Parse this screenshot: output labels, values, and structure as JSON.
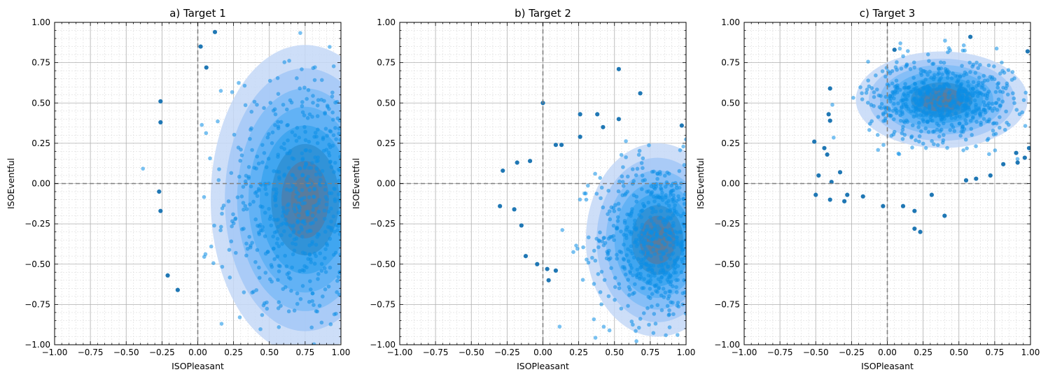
{
  "chart_data": [
    {
      "type": "scatter",
      "title": "a) Target 1",
      "xlabel": "ISOPleasant",
      "ylabel": "ISOEventful",
      "xlim": [
        -1,
        1
      ],
      "ylim": [
        -1,
        1
      ],
      "xticks": [
        "−1.00",
        "−0.75",
        "−0.50",
        "−0.25",
        "0.00",
        "0.25",
        "0.50",
        "0.75",
        "1.00"
      ],
      "yticks": [
        "−1.00",
        "−0.75",
        "−0.50",
        "−0.25",
        "0.00",
        "0.25",
        "0.50",
        "0.75",
        "1.00"
      ],
      "grid": true,
      "density_center": [
        0.75,
        -0.1
      ],
      "density_spread": [
        0.33,
        0.48
      ],
      "outliers": [
        {
          "x": -0.26,
          "y": 0.51
        },
        {
          "x": -0.26,
          "y": 0.38
        },
        {
          "x": -0.27,
          "y": -0.05
        },
        {
          "x": -0.26,
          "y": -0.17
        },
        {
          "x": -0.21,
          "y": -0.57
        },
        {
          "x": -0.14,
          "y": -0.66
        },
        {
          "x": 0.12,
          "y": 0.94
        },
        {
          "x": 0.02,
          "y": 0.85
        },
        {
          "x": 0.06,
          "y": 0.72
        }
      ]
    },
    {
      "type": "scatter",
      "title": "b) Target 2",
      "xlabel": "ISOPleasant",
      "ylabel": "ISOEventful",
      "xlim": [
        -1,
        1
      ],
      "ylim": [
        -1,
        1
      ],
      "xticks": [
        "−1.00",
        "−0.75",
        "−0.50",
        "−0.25",
        "0.00",
        "0.25",
        "0.50",
        "0.75",
        "1.00"
      ],
      "yticks": [
        "−1.00",
        "−0.75",
        "−0.50",
        "−0.25",
        "0.00",
        "0.25",
        "0.50",
        "0.75",
        "1.00"
      ],
      "grid": true,
      "density_center": [
        0.8,
        -0.35
      ],
      "density_spread": [
        0.25,
        0.3
      ],
      "outliers": [
        {
          "x": -0.3,
          "y": -0.14
        },
        {
          "x": -0.28,
          "y": 0.08
        },
        {
          "x": -0.2,
          "y": -0.16
        },
        {
          "x": -0.18,
          "y": 0.13
        },
        {
          "x": -0.15,
          "y": -0.26
        },
        {
          "x": -0.12,
          "y": -0.45
        },
        {
          "x": -0.09,
          "y": 0.14
        },
        {
          "x": -0.04,
          "y": -0.5
        },
        {
          "x": 0.0,
          "y": 0.5
        },
        {
          "x": 0.03,
          "y": -0.53
        },
        {
          "x": 0.04,
          "y": -0.6
        },
        {
          "x": 0.09,
          "y": 0.24
        },
        {
          "x": 0.13,
          "y": 0.24
        },
        {
          "x": 0.26,
          "y": 0.43
        },
        {
          "x": 0.26,
          "y": 0.29
        },
        {
          "x": 0.38,
          "y": 0.43
        },
        {
          "x": 0.42,
          "y": 0.35
        },
        {
          "x": 0.53,
          "y": 0.71
        },
        {
          "x": 0.53,
          "y": 0.4
        },
        {
          "x": 0.68,
          "y": 0.56
        },
        {
          "x": 0.97,
          "y": 0.36
        },
        {
          "x": 0.09,
          "y": -0.54
        }
      ]
    },
    {
      "type": "scatter",
      "title": "c) Target 3",
      "xlabel": "ISOPleasant",
      "ylabel": "ISOEventful",
      "xlim": [
        -1,
        1
      ],
      "ylim": [
        -1,
        1
      ],
      "xticks": [
        "−1.00",
        "−0.75",
        "−0.50",
        "−0.25",
        "0.00",
        "0.25",
        "0.50",
        "0.75",
        "1.00"
      ],
      "yticks": [
        "−1.00",
        "−0.75",
        "−0.50",
        "−0.25",
        "0.00",
        "0.25",
        "0.50",
        "0.75",
        "1.00"
      ],
      "grid": true,
      "density_center": [
        0.38,
        0.52
      ],
      "density_spread": [
        0.3,
        0.15
      ],
      "outliers": [
        {
          "x": -0.51,
          "y": 0.26
        },
        {
          "x": -0.5,
          "y": -0.07
        },
        {
          "x": -0.48,
          "y": 0.05
        },
        {
          "x": -0.44,
          "y": 0.22
        },
        {
          "x": -0.42,
          "y": 0.18
        },
        {
          "x": -0.4,
          "y": 0.59
        },
        {
          "x": -0.41,
          "y": 0.43
        },
        {
          "x": -0.4,
          "y": 0.39
        },
        {
          "x": -0.39,
          "y": 0.01
        },
        {
          "x": -0.4,
          "y": -0.1
        },
        {
          "x": -0.33,
          "y": 0.07
        },
        {
          "x": -0.3,
          "y": -0.11
        },
        {
          "x": -0.28,
          "y": -0.07
        },
        {
          "x": -0.17,
          "y": -0.08
        },
        {
          "x": -0.03,
          "y": -0.14
        },
        {
          "x": 0.05,
          "y": 0.83
        },
        {
          "x": 0.11,
          "y": -0.14
        },
        {
          "x": 0.19,
          "y": -0.17
        },
        {
          "x": 0.19,
          "y": -0.28
        },
        {
          "x": 0.23,
          "y": -0.3
        },
        {
          "x": 0.31,
          "y": -0.07
        },
        {
          "x": 0.4,
          "y": -0.2
        },
        {
          "x": 0.58,
          "y": 0.91
        },
        {
          "x": 0.55,
          "y": 0.02
        },
        {
          "x": 0.62,
          "y": 0.03
        },
        {
          "x": 0.72,
          "y": 0.05
        },
        {
          "x": 0.81,
          "y": 0.12
        },
        {
          "x": 0.9,
          "y": 0.19
        },
        {
          "x": 0.91,
          "y": 0.13
        },
        {
          "x": 0.96,
          "y": 0.16
        },
        {
          "x": 0.98,
          "y": 0.82
        },
        {
          "x": 0.99,
          "y": 0.22
        }
      ]
    }
  ],
  "colors": {
    "kde_levels": [
      "#c4d8f7",
      "#a3c8f7",
      "#7fbcf7",
      "#5cb0f4",
      "#3ba3ee",
      "#2f8fd3",
      "#4c7fae",
      "#5d7b99"
    ],
    "point": "#1f77b4",
    "point_dense": "#0b8ee6",
    "origin_line": "#808080",
    "grid_major": "#b0b0b0",
    "grid_minor": "#dddddd"
  }
}
